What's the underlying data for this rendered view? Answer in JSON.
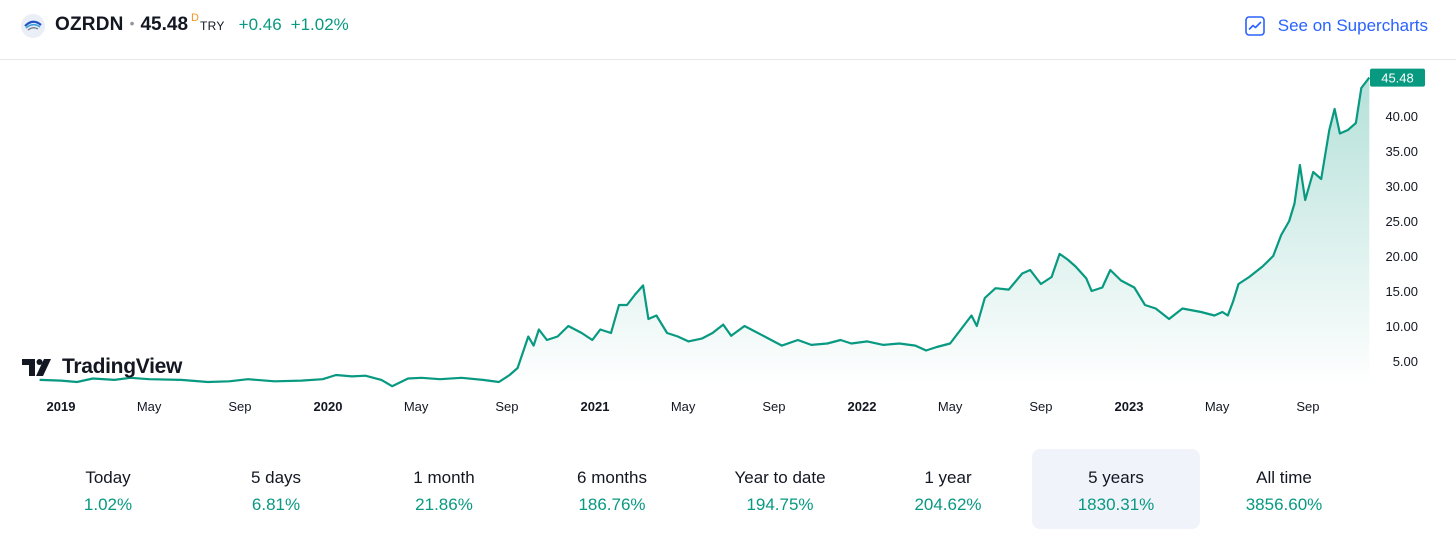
{
  "header": {
    "symbol": "OZRDN",
    "price": "45.48",
    "price_marker": "D",
    "currency": "TRY",
    "change": "+0.46",
    "change_percent": "+1.02%",
    "supercharts_label": "See on Supercharts",
    "accent_color": "#2962ff",
    "up_color": "#089981"
  },
  "brand": {
    "name": "TradingView",
    "icon": "tradingview-logo-icon"
  },
  "chart_data": {
    "type": "area",
    "y_ticks": [
      "5.00",
      "10.00",
      "15.00",
      "20.00",
      "25.00",
      "30.00",
      "35.00",
      "40.00"
    ],
    "x_ticks": [
      {
        "label": "2019",
        "t": 2019.0,
        "bold": true
      },
      {
        "label": "May",
        "t": 2019.33
      },
      {
        "label": "Sep",
        "t": 2019.67
      },
      {
        "label": "2020",
        "t": 2020.0,
        "bold": true
      },
      {
        "label": "May",
        "t": 2020.33
      },
      {
        "label": "Sep",
        "t": 2020.67
      },
      {
        "label": "2021",
        "t": 2021.0,
        "bold": true
      },
      {
        "label": "May",
        "t": 2021.33
      },
      {
        "label": "Sep",
        "t": 2021.67
      },
      {
        "label": "2022",
        "t": 2022.0,
        "bold": true
      },
      {
        "label": "May",
        "t": 2022.33
      },
      {
        "label": "Sep",
        "t": 2022.67
      },
      {
        "label": "2023",
        "t": 2023.0,
        "bold": true
      },
      {
        "label": "May",
        "t": 2023.33
      },
      {
        "label": "Sep",
        "t": 2023.67
      }
    ],
    "last_value": "45.48",
    "line_color": "#089981",
    "series": [
      {
        "values": [
          [
            2018.92,
            2.3
          ],
          [
            2019.0,
            2.2
          ],
          [
            2019.06,
            2.0
          ],
          [
            2019.12,
            2.5
          ],
          [
            2019.2,
            2.3
          ],
          [
            2019.26,
            2.6
          ],
          [
            2019.33,
            2.4
          ],
          [
            2019.45,
            2.3
          ],
          [
            2019.55,
            2.0
          ],
          [
            2019.63,
            2.1
          ],
          [
            2019.7,
            2.4
          ],
          [
            2019.8,
            2.1
          ],
          [
            2019.9,
            2.2
          ],
          [
            2019.98,
            2.4
          ],
          [
            2020.03,
            3.0
          ],
          [
            2020.09,
            2.8
          ],
          [
            2020.14,
            2.9
          ],
          [
            2020.2,
            2.3
          ],
          [
            2020.24,
            1.4
          ],
          [
            2020.3,
            2.5
          ],
          [
            2020.35,
            2.6
          ],
          [
            2020.42,
            2.4
          ],
          [
            2020.5,
            2.6
          ],
          [
            2020.58,
            2.3
          ],
          [
            2020.64,
            2.0
          ],
          [
            2020.68,
            3.0
          ],
          [
            2020.71,
            4.0
          ],
          [
            2020.75,
            8.5
          ],
          [
            2020.77,
            7.2
          ],
          [
            2020.79,
            9.5
          ],
          [
            2020.82,
            8.0
          ],
          [
            2020.86,
            8.5
          ],
          [
            2020.9,
            10.0
          ],
          [
            2020.95,
            9.0
          ],
          [
            2020.99,
            8.0
          ],
          [
            2021.02,
            9.5
          ],
          [
            2021.06,
            9.0
          ],
          [
            2021.09,
            13.0
          ],
          [
            2021.12,
            13.0
          ],
          [
            2021.15,
            14.5
          ],
          [
            2021.18,
            15.8
          ],
          [
            2021.2,
            11.0
          ],
          [
            2021.23,
            11.5
          ],
          [
            2021.27,
            9.0
          ],
          [
            2021.31,
            8.5
          ],
          [
            2021.35,
            7.8
          ],
          [
            2021.4,
            8.2
          ],
          [
            2021.44,
            9.0
          ],
          [
            2021.48,
            10.2
          ],
          [
            2021.51,
            8.6
          ],
          [
            2021.56,
            10.0
          ],
          [
            2021.61,
            9.0
          ],
          [
            2021.66,
            8.0
          ],
          [
            2021.7,
            7.2
          ],
          [
            2021.76,
            8.0
          ],
          [
            2021.81,
            7.3
          ],
          [
            2021.87,
            7.5
          ],
          [
            2021.92,
            8.0
          ],
          [
            2021.96,
            7.5
          ],
          [
            2022.02,
            7.8
          ],
          [
            2022.08,
            7.3
          ],
          [
            2022.14,
            7.5
          ],
          [
            2022.2,
            7.2
          ],
          [
            2022.24,
            6.5
          ],
          [
            2022.28,
            7.0
          ],
          [
            2022.33,
            7.5
          ],
          [
            2022.37,
            9.5
          ],
          [
            2022.41,
            11.5
          ],
          [
            2022.43,
            10.0
          ],
          [
            2022.46,
            14.0
          ],
          [
            2022.5,
            15.4
          ],
          [
            2022.55,
            15.2
          ],
          [
            2022.6,
            17.5
          ],
          [
            2022.63,
            18.0
          ],
          [
            2022.67,
            16.0
          ],
          [
            2022.71,
            17.0
          ],
          [
            2022.74,
            20.3
          ],
          [
            2022.77,
            19.5
          ],
          [
            2022.8,
            18.5
          ],
          [
            2022.84,
            16.8
          ],
          [
            2022.86,
            15.0
          ],
          [
            2022.9,
            15.5
          ],
          [
            2022.93,
            18.0
          ],
          [
            2022.97,
            16.5
          ],
          [
            2023.02,
            15.5
          ],
          [
            2023.06,
            13.0
          ],
          [
            2023.1,
            12.5
          ],
          [
            2023.15,
            11.0
          ],
          [
            2023.2,
            12.5
          ],
          [
            2023.27,
            12.0
          ],
          [
            2023.32,
            11.5
          ],
          [
            2023.35,
            12.0
          ],
          [
            2023.37,
            11.5
          ],
          [
            2023.39,
            13.5
          ],
          [
            2023.41,
            16.0
          ],
          [
            2023.45,
            17.0
          ],
          [
            2023.5,
            18.5
          ],
          [
            2023.54,
            20.0
          ],
          [
            2023.57,
            23.0
          ],
          [
            2023.6,
            25.0
          ],
          [
            2023.62,
            27.5
          ],
          [
            2023.64,
            33.0
          ],
          [
            2023.66,
            28.0
          ],
          [
            2023.69,
            32.0
          ],
          [
            2023.72,
            31.0
          ],
          [
            2023.75,
            38.0
          ],
          [
            2023.77,
            41.0
          ],
          [
            2023.79,
            37.5
          ],
          [
            2023.82,
            38.0
          ],
          [
            2023.85,
            39.0
          ],
          [
            2023.87,
            44.0
          ],
          [
            2023.9,
            45.48
          ]
        ]
      }
    ]
  },
  "ranges": [
    {
      "label": "Today",
      "value": "1.02%"
    },
    {
      "label": "5 days",
      "value": "6.81%"
    },
    {
      "label": "1 month",
      "value": "21.86%"
    },
    {
      "label": "6 months",
      "value": "186.76%"
    },
    {
      "label": "Year to date",
      "value": "194.75%"
    },
    {
      "label": "1 year",
      "value": "204.62%"
    },
    {
      "label": "5 years",
      "value": "1830.31%",
      "active": true
    },
    {
      "label": "All time",
      "value": "3856.60%"
    }
  ]
}
